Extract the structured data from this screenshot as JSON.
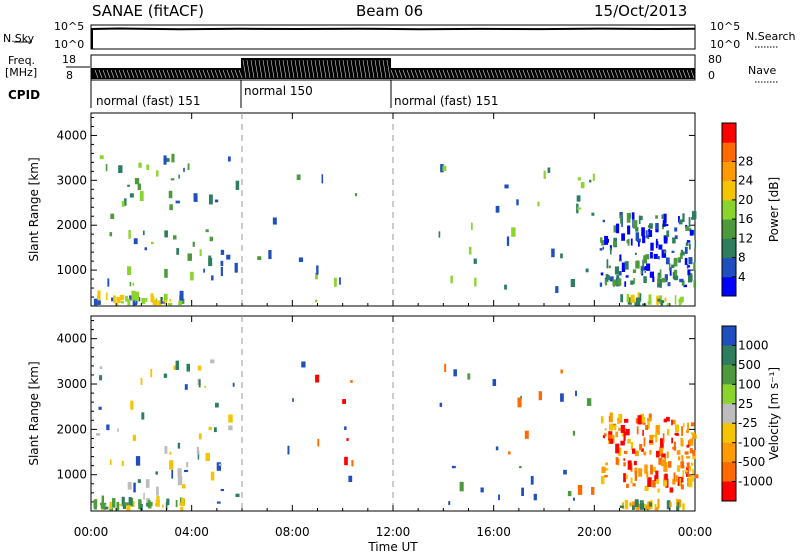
{
  "header": {
    "station": "SANAE (fitACF)",
    "beam": "Beam 06",
    "date": "15/Oct/2013"
  },
  "top_panels": {
    "nsky_label": "N.Sky",
    "nsky_top": "10^5",
    "nsky_bottom": "10^0",
    "nsearch_label": "N.Search",
    "nsearch_top": "10^5",
    "nsearch_bottom": "10^0",
    "freq_label": "Freq.",
    "freq_unit": "[MHz]",
    "freq_top": "18",
    "freq_bottom": "8",
    "nave_label": "Nave",
    "nave_top": "80",
    "nave_bottom": "0",
    "cpid_label": "CPID",
    "cpid_segments": [
      {
        "label": "normal (fast) 151",
        "start_h": 0,
        "end_h": 6
      },
      {
        "label": "normal 150",
        "start_h": 6,
        "end_h": 12
      },
      {
        "label": "normal (fast) 151",
        "start_h": 12,
        "end_h": 24
      }
    ]
  },
  "chart_data": [
    {
      "type": "heatmap",
      "name": "power",
      "ylabel": "Slant Range [km]",
      "xlim_hours": [
        0,
        24
      ],
      "ylim": [
        200,
        4500
      ],
      "yticks": [
        "1000",
        "2000",
        "3000",
        "4000"
      ],
      "colorbar_label": "Power [dB]",
      "colorbar_ticks": [
        "4",
        "8",
        "12",
        "16",
        "20",
        "24",
        "28"
      ],
      "colorbar_colors": [
        "#0000ff",
        "#1f4fbf",
        "#2e7d5e",
        "#4c9a3c",
        "#8bd42e",
        "#f5c400",
        "#ff9a00",
        "#ff6a00",
        "#ff0000"
      ],
      "scatter_clusters": [
        {
          "t0": 0.1,
          "t1": 5.8,
          "r0": 200,
          "r1": 3500,
          "n": 60,
          "colors": [
            "#1f4fbf",
            "#2e7d5e",
            "#4c9a3c",
            "#8bd42e"
          ]
        },
        {
          "t0": 0.1,
          "t1": 3.6,
          "r0": 200,
          "r1": 350,
          "n": 40,
          "colors": [
            "#f5c400",
            "#8bd42e",
            "#1f4fbf"
          ]
        },
        {
          "t0": 6.5,
          "t1": 10.5,
          "r0": 200,
          "r1": 3400,
          "n": 12,
          "colors": [
            "#4c9a3c",
            "#8bd42e",
            "#1f4fbf"
          ]
        },
        {
          "t0": 13.8,
          "t1": 20,
          "r0": 300,
          "r1": 3300,
          "n": 30,
          "colors": [
            "#1f4fbf",
            "#2e7d5e",
            "#8bd42e"
          ]
        },
        {
          "t0": 20.2,
          "t1": 24,
          "r0": 600,
          "r1": 2200,
          "n": 160,
          "colors": [
            "#1f4fbf",
            "#0000ff",
            "#2e7d5e",
            "#4c9a3c"
          ]
        },
        {
          "t0": 21,
          "t1": 23.5,
          "r0": 200,
          "r1": 300,
          "n": 30,
          "colors": [
            "#8bd42e",
            "#f5c400",
            "#2e7d5e"
          ]
        }
      ]
    },
    {
      "type": "heatmap",
      "name": "velocity",
      "ylabel": "Slant Range [km]",
      "xlim_hours": [
        0,
        24
      ],
      "ylim": [
        200,
        4500
      ],
      "yticks": [
        "1000",
        "2000",
        "3000",
        "4000"
      ],
      "colorbar_label": "Velocity [m s⁻¹]",
      "colorbar_ticks": [
        "1000",
        "500",
        "100",
        "25",
        "-25",
        "-100",
        "-500",
        "-1000"
      ],
      "colorbar_colors": [
        "#1f4fbf",
        "#2e7d5e",
        "#4c9a3c",
        "#8bd42e",
        "#bdbdbd",
        "#f5c400",
        "#ff9a00",
        "#ff6a00",
        "#ff0000"
      ],
      "scatter_clusters": [
        {
          "t0": 0.1,
          "t1": 5.8,
          "r0": 200,
          "r1": 3500,
          "n": 60,
          "colors": [
            "#2e7d5e",
            "#bdbdbd",
            "#f5c400",
            "#1f4fbf"
          ]
        },
        {
          "t0": 0.1,
          "t1": 3.6,
          "r0": 200,
          "r1": 350,
          "n": 40,
          "colors": [
            "#2e7d5e",
            "#4c9a3c",
            "#f5c400"
          ]
        },
        {
          "t0": 6.5,
          "t1": 10.5,
          "r0": 800,
          "r1": 3500,
          "n": 12,
          "colors": [
            "#ff0000",
            "#ff6a00",
            "#1f4fbf"
          ]
        },
        {
          "t0": 13.8,
          "t1": 20,
          "r0": 300,
          "r1": 3300,
          "n": 30,
          "colors": [
            "#ff6a00",
            "#4c9a3c",
            "#1f4fbf"
          ]
        },
        {
          "t0": 20.2,
          "t1": 24,
          "r0": 600,
          "r1": 2200,
          "n": 160,
          "colors": [
            "#ff6a00",
            "#ff9a00",
            "#ff0000",
            "#f5c400"
          ]
        },
        {
          "t0": 21,
          "t1": 23.5,
          "r0": 200,
          "r1": 300,
          "n": 30,
          "colors": [
            "#f5c400",
            "#ff9a00",
            "#2e7d5e"
          ]
        }
      ]
    }
  ],
  "x_axis": {
    "ticks": [
      "00:00",
      "04:00",
      "08:00",
      "12:00",
      "16:00",
      "20:00",
      "00:00"
    ],
    "label": "Time UT"
  },
  "colors": {
    "axis": "#000000",
    "divider": "#999999"
  }
}
